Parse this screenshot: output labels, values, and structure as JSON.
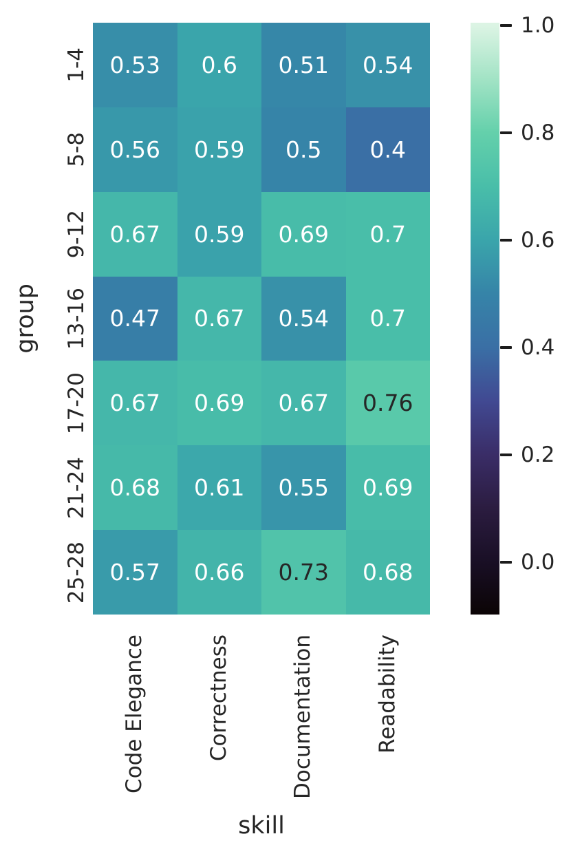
{
  "figure": {
    "background": "#ffffff",
    "text_color": "#262626"
  },
  "chart_data": {
    "type": "heatmap",
    "title": "",
    "xlabel": "skill",
    "ylabel": "group",
    "columns": [
      "Code Elegance",
      "Correctness",
      "Documentation",
      "Readability"
    ],
    "rows": [
      "1-4",
      "5-8",
      "9-12",
      "13-16",
      "17-20",
      "21-24",
      "25-28"
    ],
    "values": [
      [
        0.53,
        0.6,
        0.51,
        0.54
      ],
      [
        0.56,
        0.59,
        0.5,
        0.4
      ],
      [
        0.67,
        0.59,
        0.69,
        0.7
      ],
      [
        0.47,
        0.67,
        0.54,
        0.7
      ],
      [
        0.67,
        0.69,
        0.67,
        0.76
      ],
      [
        0.68,
        0.61,
        0.55,
        0.69
      ],
      [
        0.57,
        0.66,
        0.73,
        0.68
      ]
    ],
    "vmin": -0.1,
    "vmax": 1.0,
    "grid_on": false,
    "colormap": {
      "name": "mako",
      "stops": [
        {
          "v": -0.1,
          "c": "#0B0405"
        },
        {
          "v": 0.0,
          "c": "#190F25"
        },
        {
          "v": 0.1,
          "c": "#2B1C40"
        },
        {
          "v": 0.2,
          "c": "#3A2D67"
        },
        {
          "v": 0.3,
          "c": "#414992"
        },
        {
          "v": 0.4,
          "c": "#3A6FA5"
        },
        {
          "v": 0.5,
          "c": "#3684A8"
        },
        {
          "v": 0.6,
          "c": "#3AA5AB"
        },
        {
          "v": 0.7,
          "c": "#49BEA9"
        },
        {
          "v": 0.8,
          "c": "#64D0AB"
        },
        {
          "v": 0.9,
          "c": "#A2E3C5"
        },
        {
          "v": 1.0,
          "c": "#DCF4E4"
        }
      ]
    },
    "colorbar": {
      "position": "right",
      "tick_labels": [
        "1.0",
        "0.8",
        "0.6",
        "0.4",
        "0.2",
        "0.0"
      ],
      "tick_values": [
        1.0,
        0.8,
        0.6,
        0.4,
        0.2,
        0.0
      ]
    },
    "annot": {
      "light_text": "#ffffff",
      "dark_text": "#262626",
      "dark_text_min_value": 0.72
    }
  }
}
